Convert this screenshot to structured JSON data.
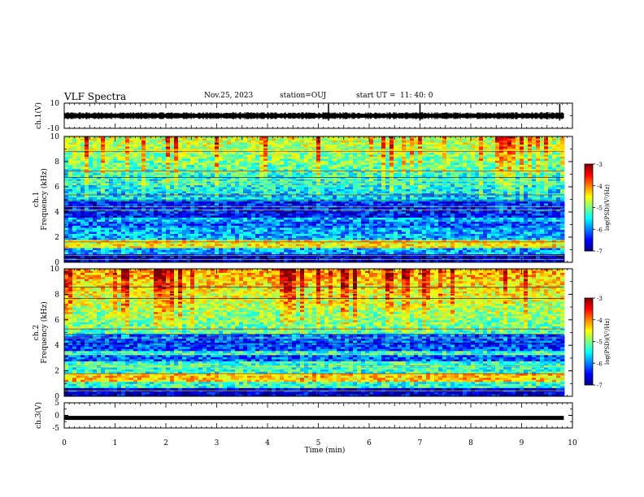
{
  "header": {
    "title": "VLF Spectra",
    "date": "Nov.25, 2023",
    "station": "station=OUJ",
    "start_label": "start  UT  =",
    "start_time": "11: 40: 0"
  },
  "chart_data": [
    {
      "type": "line",
      "name": "ch1-waveform",
      "ylabel": "ch.1(V)",
      "ylim": [
        -10,
        10
      ],
      "yticks": [
        "10",
        "-10"
      ],
      "xlim": [
        0,
        10
      ],
      "data_end_min": 9.83,
      "baseline": 0,
      "spikes_min": [
        5.2,
        7.0,
        9.75
      ]
    },
    {
      "type": "heatmap",
      "name": "ch1-spectrogram",
      "ylabel_line1": "ch.1",
      "ylabel_line2": "Frequency  (kHz)",
      "ylim": [
        0,
        10
      ],
      "yticks": [
        "0",
        "2",
        "4",
        "6",
        "8",
        "10"
      ],
      "xlim": [
        0,
        10
      ],
      "colorbar": {
        "label": "log(PSD)(V²/Hz)",
        "range": [
          -7,
          -3
        ],
        "ticks": [
          "-3",
          "-4",
          "-5",
          "-6",
          "-7"
        ]
      }
    },
    {
      "type": "heatmap",
      "name": "ch2-spectrogram",
      "ylabel_line1": "ch.2",
      "ylabel_line2": "Frequency  (kHz)",
      "ylim": [
        0,
        10
      ],
      "yticks": [
        "0",
        "2",
        "4",
        "6",
        "8",
        "10"
      ],
      "xlim": [
        0,
        10
      ],
      "colorbar": {
        "label": "log(PSD)(V²/Hz)",
        "range": [
          -7,
          -3
        ],
        "ticks": [
          "-3",
          "-4",
          "-5",
          "-6",
          "-7"
        ]
      }
    },
    {
      "type": "line",
      "name": "ch3-waveform",
      "ylabel": "ch.3(V)",
      "ylim": [
        -5,
        5
      ],
      "yticks": [
        "5",
        "0",
        "-5"
      ],
      "xlim": [
        0,
        10
      ],
      "data_end_min": 9.83,
      "baseline": -1
    }
  ],
  "xaxis": {
    "label": "Time  (min)",
    "ticks": [
      "0",
      "1",
      "2",
      "3",
      "4",
      "5",
      "6",
      "7",
      "8",
      "9",
      "10"
    ]
  }
}
